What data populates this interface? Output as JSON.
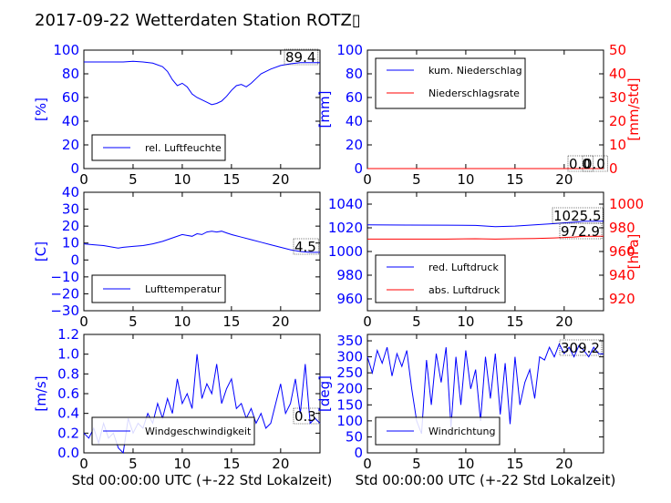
{
  "title": "2017-09-22 Wetterdaten Station ROTZ▯",
  "colors": {
    "blue": "#0000ff",
    "red": "#ff0000",
    "black": "#000000"
  },
  "chart_data": [
    {
      "type": "line",
      "ylabel": "[%]",
      "xlim": [
        0,
        24
      ],
      "ylim": [
        0,
        100
      ],
      "xticks": [
        "0",
        "5",
        "10",
        "15",
        "20"
      ],
      "yticks": [
        "0",
        "20",
        "40",
        "60",
        "80",
        "100"
      ],
      "legend": "lower-left",
      "value_label": "89.4",
      "series": [
        {
          "name": "rel. Luftfeuchte",
          "color": "#0000ff",
          "x": [
            0,
            1,
            2,
            3,
            4,
            5,
            6,
            7,
            8,
            8.5,
            9,
            9.5,
            10,
            10.5,
            11,
            11.5,
            12,
            12.5,
            13,
            13.5,
            14,
            14.5,
            15,
            15.5,
            16,
            16.5,
            17,
            17.5,
            18,
            19,
            20,
            21,
            22,
            23,
            24
          ],
          "y": [
            90,
            90,
            90,
            90,
            90,
            90.5,
            90,
            89,
            86,
            82,
            75,
            70,
            72,
            69,
            63,
            60,
            58,
            56,
            54,
            55,
            57,
            61,
            66,
            70,
            71,
            69,
            72,
            76,
            80,
            84,
            87,
            88.5,
            89.4,
            89.4,
            89.4
          ]
        }
      ]
    },
    {
      "type": "line",
      "ylabel": "[mm]",
      "y2label": "[mm/std]",
      "xlim": [
        0,
        24
      ],
      "ylim": [
        0,
        100
      ],
      "y2lim": [
        0,
        50
      ],
      "xticks": [
        "0",
        "5",
        "10",
        "15",
        "20"
      ],
      "yticks": [
        "0",
        "20",
        "40",
        "60",
        "80",
        "100"
      ],
      "y2ticks": [
        "0",
        "10",
        "20",
        "30",
        "40",
        "50"
      ],
      "legend": "upper-left",
      "value_labels": [
        "0.0",
        "0.0"
      ],
      "series": [
        {
          "name": "kum. Niederschlag",
          "color": "#0000ff",
          "x": [
            0,
            24
          ],
          "y": [
            0,
            0
          ]
        },
        {
          "name": "Niederschlagsrate",
          "color": "#ff0000",
          "axis": "right",
          "x": [
            0,
            24
          ],
          "y": [
            0,
            0
          ]
        }
      ]
    },
    {
      "type": "line",
      "ylabel": "[C]",
      "xlim": [
        0,
        24
      ],
      "ylim": [
        -30,
        40
      ],
      "xticks": [
        "0",
        "5",
        "10",
        "15",
        "20"
      ],
      "yticks": [
        "−30",
        "−20",
        "−10",
        "0",
        "10",
        "20",
        "30",
        "40"
      ],
      "legend": "lower-left",
      "value_label": "4.5",
      "series": [
        {
          "name": "Lufttemperatur",
          "color": "#0000ff",
          "x": [
            0,
            1,
            2,
            3,
            3.5,
            4,
            5,
            6,
            7,
            8,
            9,
            10,
            10.5,
            11,
            11.5,
            12,
            12.5,
            13,
            13.5,
            14,
            14.5,
            15,
            16,
            17,
            18,
            19,
            20,
            21,
            22,
            23,
            24
          ],
          "y": [
            9.5,
            9,
            8.5,
            7.5,
            7,
            7.5,
            8,
            8.5,
            9.5,
            11,
            13,
            15,
            14.5,
            14,
            15.5,
            15,
            16.5,
            17,
            16.5,
            17,
            16,
            15,
            13.5,
            12,
            10.5,
            9,
            7.5,
            6,
            5,
            4.5,
            4.5
          ]
        }
      ]
    },
    {
      "type": "line",
      "xlim": [
        0,
        24
      ],
      "ylim": [
        950,
        1050
      ],
      "y2lim": [
        910,
        1010
      ],
      "y2label": "[hPa]",
      "xticks": [
        "0",
        "5",
        "10",
        "15",
        "20"
      ],
      "yticks": [
        "960",
        "980",
        "1000",
        "1020",
        "1040"
      ],
      "y2ticks": [
        "920",
        "940",
        "960",
        "980",
        "1000"
      ],
      "legend": "lower-left",
      "value_labels": [
        "1025.5",
        "972.9"
      ],
      "series": [
        {
          "name": "red. Luftdruck",
          "color": "#0000ff",
          "x": [
            0,
            4,
            8,
            11,
            13,
            15,
            17,
            19,
            21,
            22,
            24
          ],
          "y": [
            1022.5,
            1022.3,
            1022.2,
            1022,
            1021,
            1021.5,
            1022.5,
            1023.5,
            1024.8,
            1025.5,
            1025.5
          ]
        },
        {
          "name": "abs. Luftdruck",
          "color": "#ff0000",
          "axis": "right",
          "x": [
            0,
            4,
            8,
            11,
            13,
            15,
            17,
            19,
            21,
            22,
            24
          ],
          "y": [
            970.5,
            970.5,
            970.5,
            970.8,
            970.5,
            970.8,
            971,
            971.5,
            972.2,
            972.9,
            972.9
          ]
        }
      ]
    },
    {
      "type": "line",
      "ylabel": "[m/s]",
      "xlabel": "Std 00:00:00 UTC (+-22 Std Lokalzeit)",
      "xlim": [
        0,
        24
      ],
      "ylim": [
        0,
        1.2
      ],
      "xticks": [
        "0",
        "5",
        "10",
        "15",
        "20"
      ],
      "yticks": [
        "0.0",
        "0.2",
        "0.4",
        "0.6",
        "0.8",
        "1.0",
        "1.2"
      ],
      "legend": "lower-left",
      "value_label": "0.3",
      "series": [
        {
          "name": "Windgeschwindigkeit",
          "color": "#0000ff",
          "x": [
            0,
            0.5,
            1,
            1.5,
            2,
            2.5,
            3,
            3.5,
            4,
            4.5,
            5,
            5.5,
            6,
            6.5,
            7,
            7.5,
            8,
            8.5,
            9,
            9.5,
            10,
            10.5,
            11,
            11.5,
            12,
            12.5,
            13,
            13.5,
            14,
            14.5,
            15,
            15.5,
            16,
            16.5,
            17,
            17.5,
            18,
            18.5,
            19,
            19.5,
            20,
            20.5,
            21,
            21.5,
            22,
            22.5,
            23,
            23.5,
            24
          ],
          "y": [
            0.2,
            0.15,
            0.25,
            0.1,
            0.3,
            0.15,
            0.2,
            0.05,
            0.0,
            0.35,
            0.2,
            0.3,
            0.25,
            0.4,
            0.3,
            0.5,
            0.35,
            0.55,
            0.4,
            0.75,
            0.5,
            0.6,
            0.45,
            1.0,
            0.55,
            0.7,
            0.6,
            0.9,
            0.5,
            0.65,
            0.75,
            0.45,
            0.5,
            0.35,
            0.45,
            0.3,
            0.4,
            0.25,
            0.3,
            0.5,
            0.7,
            0.4,
            0.5,
            0.75,
            0.4,
            0.9,
            0.3,
            0.35,
            0.3
          ]
        }
      ]
    },
    {
      "type": "line",
      "ylabel": "[deg]",
      "xlabel": "Std 00:00:00 UTC (+-22 Std Lokalzeit)",
      "xlim": [
        0,
        24
      ],
      "ylim": [
        0,
        370
      ],
      "xticks": [
        "0",
        "5",
        "10",
        "15",
        "20"
      ],
      "yticks": [
        "0",
        "50",
        "100",
        "150",
        "200",
        "250",
        "300",
        "350"
      ],
      "legend": "lower-left",
      "value_label": "309.2",
      "series": [
        {
          "name": "Windrichtung",
          "color": "#0000ff",
          "x": [
            0,
            0.5,
            1,
            1.5,
            2,
            2.5,
            3,
            3.5,
            4,
            4.5,
            5,
            5.5,
            6,
            6.5,
            7,
            7.5,
            8,
            8.5,
            9,
            9.5,
            10,
            10.5,
            11,
            11.5,
            12,
            12.5,
            13,
            13.5,
            14,
            14.5,
            15,
            15.5,
            16,
            16.5,
            17,
            17.5,
            18,
            18.5,
            19,
            19.5,
            20,
            20.5,
            21,
            21.5,
            22,
            22.5,
            23,
            23.5,
            24
          ],
          "y": [
            300,
            250,
            320,
            280,
            330,
            240,
            310,
            270,
            320,
            200,
            100,
            60,
            290,
            150,
            310,
            220,
            330,
            80,
            300,
            150,
            320,
            200,
            260,
            100,
            300,
            170,
            310,
            120,
            280,
            90,
            300,
            150,
            220,
            260,
            170,
            300,
            290,
            330,
            300,
            340,
            310,
            330,
            300,
            335,
            320,
            300,
            330,
            310,
            309
          ]
        }
      ]
    }
  ]
}
